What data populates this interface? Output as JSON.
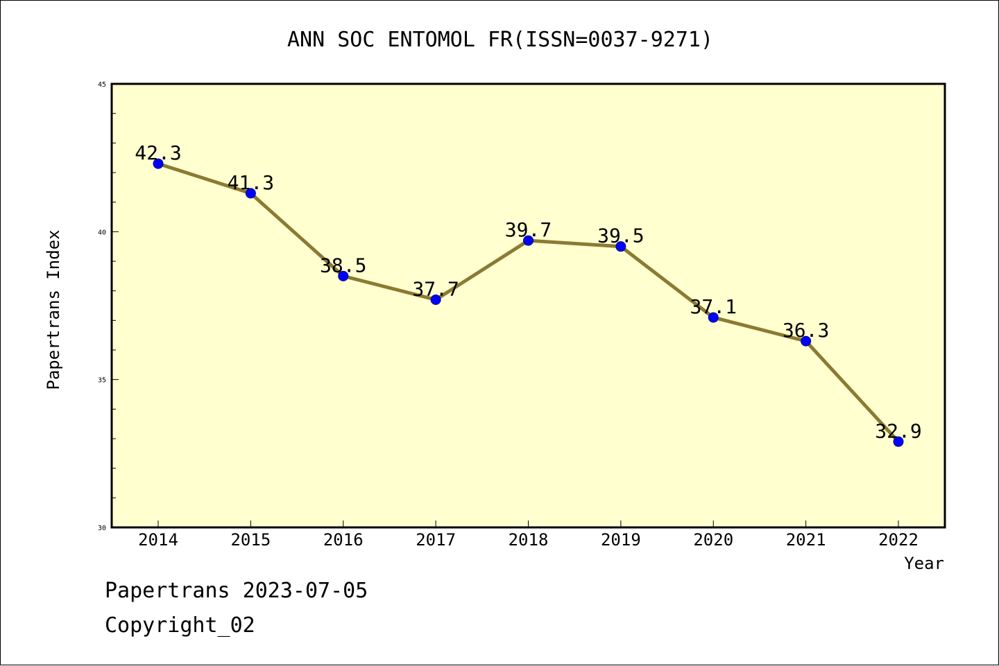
{
  "chart_data": {
    "type": "line",
    "title": "ANN SOC ENTOMOL FR(ISSN=0037-9271)",
    "xlabel": "Year",
    "ylabel": "Papertrans Index",
    "categories": [
      "2014",
      "2015",
      "2016",
      "2017",
      "2018",
      "2019",
      "2020",
      "2021",
      "2022"
    ],
    "series": [
      {
        "values": [
          42.3,
          41.3,
          38.5,
          37.7,
          39.7,
          39.5,
          37.1,
          36.3,
          32.9
        ],
        "labels": [
          "42.3",
          "41.3",
          "38.5",
          "37.7",
          "39.7",
          "39.5",
          "37.1",
          "36.3",
          "32.9"
        ]
      }
    ],
    "ylim": [
      30,
      45
    ],
    "yticks": [
      "30",
      "35",
      "40",
      "45"
    ],
    "grid": false,
    "colors": {
      "line": "#8B7A32",
      "marker": "#0000FF",
      "plot_background": "#FFFFD0"
    }
  },
  "footer": {
    "line1": "Papertrans 2023-07-05",
    "line2": "Copyright_02"
  }
}
